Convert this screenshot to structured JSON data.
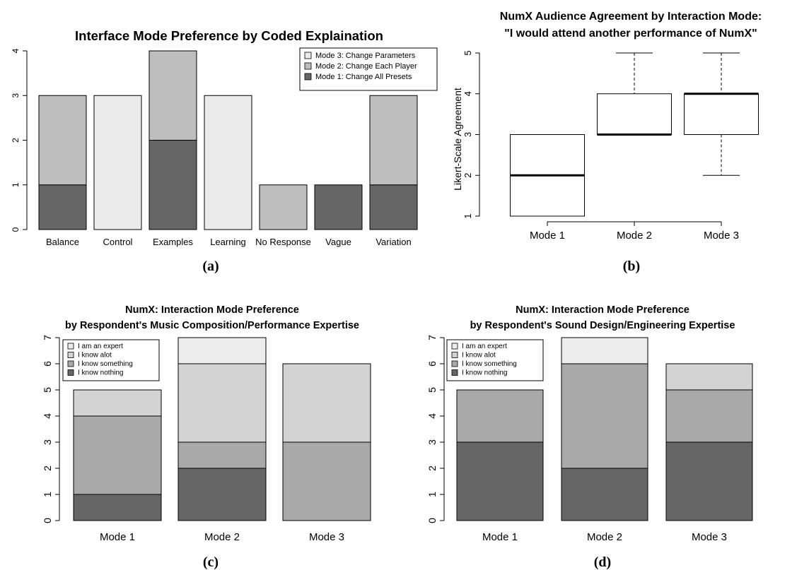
{
  "chart_data": [
    {
      "id": "a",
      "type": "bar",
      "stacked": true,
      "title": "Interface Mode Preference by Coded Explaination",
      "caption": "(a)",
      "xlabel": "",
      "ylabel": "",
      "ylim": [
        0,
        4
      ],
      "yticks": [
        "0",
        "1",
        "2",
        "3",
        "4"
      ],
      "categories": [
        "Balance",
        "Control",
        "Examples",
        "Learning",
        "No Response",
        "Vague",
        "Variation"
      ],
      "series": [
        {
          "name": "Mode 1: Change All Presets",
          "color": "#666666",
          "values": [
            1,
            0,
            2,
            0,
            0,
            1,
            1
          ]
        },
        {
          "name": "Mode 2: Change Each Player",
          "color": "#bebebe",
          "values": [
            2,
            0,
            2,
            0,
            1,
            0,
            2
          ]
        },
        {
          "name": "Mode 3: Change Parameters",
          "color": "#ebebeb",
          "values": [
            0,
            3,
            0,
            3,
            0,
            0,
            0
          ]
        }
      ],
      "legend_order": [
        2,
        1,
        0
      ],
      "legend_position": "top-right",
      "grid": false
    },
    {
      "id": "b",
      "type": "box",
      "title_lines": [
        "NumX Audience Agreement by Interaction Mode:",
        "\"I would attend another performance of NumX\""
      ],
      "caption": "(b)",
      "xlabel": "",
      "ylabel": "Likert-Scale Agreement",
      "ylim": [
        1,
        5
      ],
      "yticks": [
        "1",
        "2",
        "3",
        "4",
        "5"
      ],
      "categories": [
        "Mode 1",
        "Mode 2",
        "Mode 3"
      ],
      "boxes": [
        {
          "min": 1,
          "q1": 1,
          "median": 2,
          "q3": 3,
          "max": 3
        },
        {
          "min": 3,
          "q1": 3,
          "median": 3,
          "q3": 4,
          "max": 5
        },
        {
          "min": 2,
          "q1": 3,
          "median": 4,
          "q3": 4,
          "max": 5
        }
      ],
      "grid": false
    },
    {
      "id": "c",
      "type": "bar",
      "stacked": true,
      "title_lines": [
        "NumX: Interaction Mode Preference",
        "by Respondent's Music Composition/Performance Expertise"
      ],
      "caption": "(c)",
      "xlabel": "",
      "ylabel": "",
      "ylim": [
        0,
        7
      ],
      "yticks": [
        "0",
        "1",
        "2",
        "3",
        "4",
        "5",
        "6",
        "7"
      ],
      "categories": [
        "Mode 1",
        "Mode 2",
        "Mode 3"
      ],
      "series": [
        {
          "name": "I know nothing",
          "color": "#666666",
          "values": [
            1,
            2,
            0
          ]
        },
        {
          "name": "I know something",
          "color": "#a9a9a9",
          "values": [
            3,
            1,
            3
          ]
        },
        {
          "name": "I know alot",
          "color": "#d3d3d3",
          "values": [
            1,
            3,
            3
          ]
        },
        {
          "name": "I am an expert",
          "color": "#ededed",
          "values": [
            0,
            1,
            0
          ]
        }
      ],
      "legend_order": [
        3,
        2,
        1,
        0
      ],
      "legend_position": "top-left",
      "grid": false
    },
    {
      "id": "d",
      "type": "bar",
      "stacked": true,
      "title_lines": [
        "NumX: Interaction Mode Preference",
        "by Respondent's Sound Design/Engineering Expertise"
      ],
      "caption": "(d)",
      "xlabel": "",
      "ylabel": "",
      "ylim": [
        0,
        7
      ],
      "yticks": [
        "0",
        "1",
        "2",
        "3",
        "4",
        "5",
        "6",
        "7"
      ],
      "categories": [
        "Mode 1",
        "Mode 2",
        "Mode 3"
      ],
      "series": [
        {
          "name": "I know nothing",
          "color": "#666666",
          "values": [
            3,
            2,
            3
          ]
        },
        {
          "name": "I know something",
          "color": "#a9a9a9",
          "values": [
            2,
            4,
            2
          ]
        },
        {
          "name": "I know alot",
          "color": "#d3d3d3",
          "values": [
            0,
            0,
            1
          ]
        },
        {
          "name": "I am an expert",
          "color": "#ededed",
          "values": [
            0,
            1,
            0
          ]
        }
      ],
      "legend_order": [
        3,
        2,
        1,
        0
      ],
      "legend_position": "top-left",
      "grid": false
    }
  ]
}
